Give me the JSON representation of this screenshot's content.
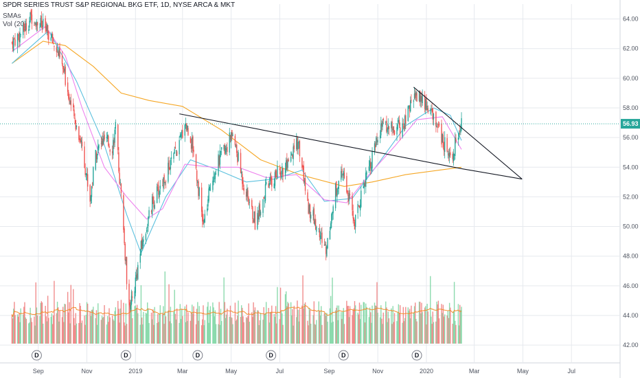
{
  "header": {
    "title": "SPDR SERIES TRUST S&P REGIONAL BKG ETF, 1D, NYSE ARCA & MKT",
    "indicator1": "SMAs",
    "indicator2": "Vol (20)"
  },
  "colors": {
    "up": "#26a69a",
    "down": "#ef5350",
    "vol_up": "#7fd6a4",
    "vol_down": "#f08080",
    "sma_short": "#ee82ee",
    "sma_mid": "#5bc0de",
    "sma_long": "#f5a623",
    "vol_ma": "#f28c2b",
    "trendline": "#131722",
    "last_price": "#26a69a",
    "grid": "#e6e9ee"
  },
  "chart_data": {
    "type": "candlestick",
    "title": "SPDR SERIES TRUST S&P REGIONAL BKG ETF, 1D, NYSE ARCA & MKT",
    "interval": "1D",
    "y_axis": {
      "ticks": [
        "64.00",
        "62.00",
        "60.00",
        "58.00",
        "56.00",
        "54.00",
        "52.00",
        "50.00",
        "48.00",
        "46.00",
        "44.00",
        "42.00"
      ],
      "range": [
        40.8,
        65.0
      ],
      "position": "right"
    },
    "x_axis": {
      "ticks": [
        "Sep",
        "Nov",
        "2019",
        "Mar",
        "May",
        "Jul",
        "Sep",
        "Nov",
        "2020",
        "Mar",
        "May",
        "Jul"
      ]
    },
    "last_price": "56.93",
    "dividend_markers": [
      "D",
      "D",
      "D",
      "D",
      "D",
      "D"
    ],
    "price_path": [
      [
        "2018-07-30",
        62.4
      ],
      [
        "2018-08-13",
        63.2
      ],
      [
        "2018-08-24",
        64.2
      ],
      [
        "2018-09-10",
        63.3
      ],
      [
        "2018-09-24",
        62.0
      ],
      [
        "2018-10-05",
        60.0
      ],
      [
        "2018-10-15",
        57.5
      ],
      [
        "2018-10-26",
        55.5
      ],
      [
        "2018-11-05",
        51.8
      ],
      [
        "2018-11-12",
        55.0
      ],
      [
        "2018-11-23",
        55.8
      ],
      [
        "2018-12-03",
        55.4
      ],
      [
        "2018-12-07",
        56.6
      ],
      [
        "2018-12-14",
        52.0
      ],
      [
        "2018-12-21",
        46.5
      ],
      [
        "2018-12-26",
        44.5
      ],
      [
        "2019-01-08",
        48.5
      ],
      [
        "2019-01-22",
        51.5
      ],
      [
        "2019-02-08",
        53.5
      ],
      [
        "2019-02-25",
        55.5
      ],
      [
        "2019-03-04",
        57.1
      ],
      [
        "2019-03-15",
        55.2
      ],
      [
        "2019-03-27",
        50.0
      ],
      [
        "2019-04-08",
        53.5
      ],
      [
        "2019-04-22",
        55.2
      ],
      [
        "2019-05-03",
        56.2
      ],
      [
        "2019-05-16",
        53.0
      ],
      [
        "2019-05-31",
        50.3
      ],
      [
        "2019-06-14",
        52.5
      ],
      [
        "2019-06-28",
        53.6
      ],
      [
        "2019-07-12",
        54.0
      ],
      [
        "2019-07-24",
        55.8
      ],
      [
        "2019-08-05",
        51.5
      ],
      [
        "2019-08-20",
        49.5
      ],
      [
        "2019-08-28",
        48.4
      ],
      [
        "2019-09-09",
        52.5
      ],
      [
        "2019-09-19",
        53.5
      ],
      [
        "2019-10-03",
        50.2
      ],
      [
        "2019-10-17",
        53.5
      ],
      [
        "2019-10-30",
        55.5
      ],
      [
        "2019-11-08",
        57.0
      ],
      [
        "2019-11-22",
        56.5
      ],
      [
        "2019-12-06",
        57.0
      ],
      [
        "2019-12-16",
        59.0
      ],
      [
        "2019-12-27",
        58.5
      ],
      [
        "2020-01-10",
        57.5
      ],
      [
        "2020-01-24",
        55.5
      ],
      [
        "2020-02-03",
        55.0
      ],
      [
        "2020-02-14",
        56.9
      ]
    ],
    "sma_short_path": [
      [
        "2018-07-30",
        61.8
      ],
      [
        "2018-09-10",
        63.5
      ],
      [
        "2018-10-05",
        61.5
      ],
      [
        "2018-10-26",
        58.0
      ],
      [
        "2018-11-23",
        54.0
      ],
      [
        "2018-12-21",
        52.0
      ],
      [
        "2019-01-15",
        50.5
      ],
      [
        "2019-02-04",
        51.2
      ],
      [
        "2019-03-04",
        54.2
      ],
      [
        "2019-04-08",
        54.0
      ],
      [
        "2019-05-10",
        54.0
      ],
      [
        "2019-06-14",
        53.3
      ],
      [
        "2019-07-22",
        53.5
      ],
      [
        "2019-08-26",
        51.8
      ],
      [
        "2019-09-23",
        51.6
      ],
      [
        "2019-10-21",
        53.5
      ],
      [
        "2019-11-22",
        55.4
      ],
      [
        "2019-12-20",
        57.2
      ],
      [
        "2020-01-21",
        57.4
      ],
      [
        "2020-02-14",
        55.2
      ]
    ],
    "sma_mid_path": [
      [
        "2018-07-30",
        61.0
      ],
      [
        "2018-09-14",
        63.2
      ],
      [
        "2018-10-19",
        59.8
      ],
      [
        "2018-11-23",
        55.5
      ],
      [
        "2018-12-21",
        50.8
      ],
      [
        "2019-01-08",
        48.2
      ],
      [
        "2019-02-08",
        52.0
      ],
      [
        "2019-03-11",
        54.5
      ],
      [
        "2019-04-15",
        53.8
      ],
      [
        "2019-05-20",
        53.0
      ],
      [
        "2019-06-24",
        53.2
      ],
      [
        "2019-07-29",
        53.8
      ],
      [
        "2019-08-26",
        51.7
      ],
      [
        "2019-09-30",
        51.9
      ],
      [
        "2019-11-01",
        54.2
      ],
      [
        "2019-12-06",
        56.8
      ],
      [
        "2020-01-10",
        58.0
      ],
      [
        "2020-01-31",
        57.5
      ],
      [
        "2020-02-14",
        55.8
      ]
    ],
    "sma_long_path": [
      [
        "2018-07-30",
        61.0
      ],
      [
        "2018-09-07",
        62.5
      ],
      [
        "2018-10-05",
        62.2
      ],
      [
        "2018-11-09",
        60.8
      ],
      [
        "2018-12-14",
        59.0
      ],
      [
        "2019-01-18",
        58.5
      ],
      [
        "2019-03-01",
        58.1
      ],
      [
        "2019-04-19",
        56.5
      ],
      [
        "2019-06-07",
        54.5
      ],
      [
        "2019-07-26",
        53.5
      ],
      [
        "2019-09-20",
        52.7
      ],
      [
        "2019-10-25",
        53.0
      ],
      [
        "2019-12-06",
        53.5
      ],
      [
        "2020-01-17",
        53.8
      ],
      [
        "2020-02-14",
        54.0
      ]
    ],
    "trendlines": [
      {
        "from": [
          "2019-02-25",
          57.6
        ],
        "to": [
          "2020-02-14",
          53.9
        ]
      },
      {
        "from": [
          "2019-12-16",
          59.4
        ],
        "to": [
          "2020-04-30",
          53.2
        ]
      },
      {
        "from": [
          "2020-02-14",
          53.9
        ],
        "to": [
          "2020-04-30",
          53.2
        ]
      }
    ],
    "volume_hint": "relative daily volume bars beneath price with a 20-day moving average line"
  }
}
